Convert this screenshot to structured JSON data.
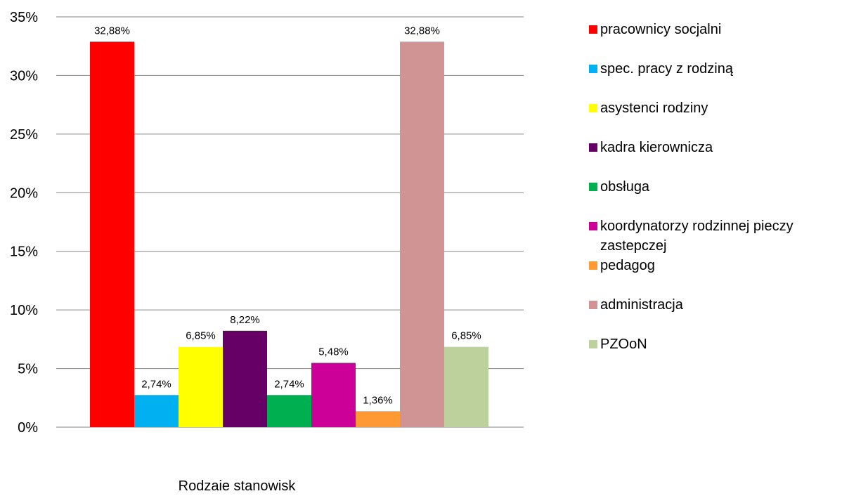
{
  "chart_data": {
    "type": "bar",
    "title": "",
    "xlabel": "Rodzaie stanowisk",
    "ylabel": "",
    "ylim": [
      0,
      35
    ],
    "y_ticks": [
      "0%",
      "5%",
      "10%",
      "15%",
      "20%",
      "25%",
      "30%",
      "35%"
    ],
    "grid": true,
    "legend_position": "right",
    "series": [
      {
        "name": "pracownicy socjalni",
        "value": 32.88,
        "label": "32,88%",
        "color": "#FF0000"
      },
      {
        "name": "spec. pracy z rodziną",
        "value": 2.74,
        "label": "2,74%",
        "color": "#00B0F0"
      },
      {
        "name": "asystenci rodziny",
        "value": 6.85,
        "label": "6,85%",
        "color": "#FFFF00"
      },
      {
        "name": "kadra kierownicza",
        "value": 8.22,
        "label": "8,22%",
        "color": "#660066"
      },
      {
        "name": "obsługa",
        "value": 2.74,
        "label": "2,74%",
        "color": "#00B050"
      },
      {
        "name": "koordynatorzy rodzinnej pieczy zastepczej",
        "value": 5.48,
        "label": "5,48%",
        "color": "#CC0099"
      },
      {
        "name": "pedagog",
        "value": 1.36,
        "label": "1,36%",
        "color": "#FF9933"
      },
      {
        "name": "administracja",
        "value": 32.88,
        "label": "32,88%",
        "color": "#D09494"
      },
      {
        "name": "PZOoN",
        "value": 6.85,
        "label": "6,85%",
        "color": "#BCD19C"
      }
    ]
  }
}
